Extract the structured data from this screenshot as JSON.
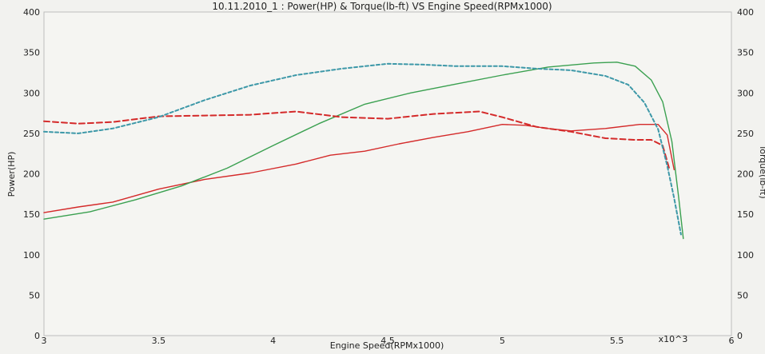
{
  "chart_data": {
    "type": "line",
    "title": "10.11.2010_1 : Power(HP) & Torque(lb-ft) VS Engine Speed(RPMx1000)",
    "xlabel": "Engine Speed(RPMx1000)",
    "ylabel_left": "Power(HP)",
    "ylabel_right": "Torque(lb-ft)",
    "x_multiplier_label": "x10^3",
    "xlim": [
      3,
      6
    ],
    "ylim_left": [
      0,
      400
    ],
    "ylim_right": [
      0,
      400
    ],
    "x_ticks": [
      "3",
      "3.5",
      "4",
      "4.5",
      "5",
      "5.5",
      "6"
    ],
    "y_ticks_left": [
      "0",
      "50",
      "100",
      "150",
      "200",
      "250",
      "300",
      "350",
      "400"
    ],
    "y_ticks_right": [
      "0",
      "50",
      "100",
      "150",
      "200",
      "250",
      "300",
      "350",
      "400"
    ],
    "grid": false,
    "legend": "none",
    "series": [
      {
        "axis": "left",
        "color": "#d42a2a",
        "style": "solid",
        "x": [
          3.0,
          3.15,
          3.3,
          3.5,
          3.7,
          3.9,
          4.1,
          4.25,
          4.4,
          4.55,
          4.7,
          4.85,
          5.0,
          5.1,
          5.2,
          5.3,
          5.45,
          5.6,
          5.68,
          5.72,
          5.75
        ],
        "y": [
          152,
          159,
          165,
          181,
          193,
          201,
          212,
          223,
          228,
          237,
          245,
          252,
          261,
          260,
          256,
          253,
          256,
          261,
          261,
          248,
          205
        ]
      },
      {
        "axis": "left",
        "color": "#3aa050",
        "style": "solid",
        "x": [
          3.0,
          3.2,
          3.4,
          3.6,
          3.8,
          4.0,
          4.2,
          4.4,
          4.6,
          4.8,
          5.0,
          5.2,
          5.4,
          5.5,
          5.58,
          5.65,
          5.7,
          5.74,
          5.77,
          5.79
        ],
        "y": [
          144,
          153,
          168,
          185,
          207,
          235,
          262,
          286,
          300,
          311,
          322,
          332,
          337,
          338,
          333,
          316,
          289,
          240,
          170,
          120
        ]
      },
      {
        "axis": "right",
        "color": "#d42a2a",
        "style": "dashed",
        "x": [
          3.0,
          3.15,
          3.3,
          3.5,
          3.7,
          3.9,
          4.1,
          4.3,
          4.5,
          4.7,
          4.9,
          5.0,
          5.15,
          5.3,
          5.45,
          5.58,
          5.65,
          5.7,
          5.73
        ],
        "y": [
          265,
          262,
          264,
          271,
          272,
          273,
          277,
          270,
          268,
          274,
          277,
          270,
          258,
          252,
          244,
          242,
          242,
          235,
          205
        ]
      },
      {
        "axis": "right",
        "color": "#3d98a8",
        "style": "dashed",
        "x": [
          3.0,
          3.15,
          3.3,
          3.5,
          3.7,
          3.9,
          4.1,
          4.3,
          4.5,
          4.65,
          4.8,
          5.0,
          5.15,
          5.3,
          5.45,
          5.55,
          5.62,
          5.68,
          5.72,
          5.75,
          5.78
        ],
        "y": [
          252,
          250,
          256,
          270,
          291,
          309,
          322,
          330,
          336,
          335,
          333,
          333,
          330,
          328,
          321,
          310,
          288,
          255,
          210,
          170,
          125
        ]
      }
    ]
  }
}
